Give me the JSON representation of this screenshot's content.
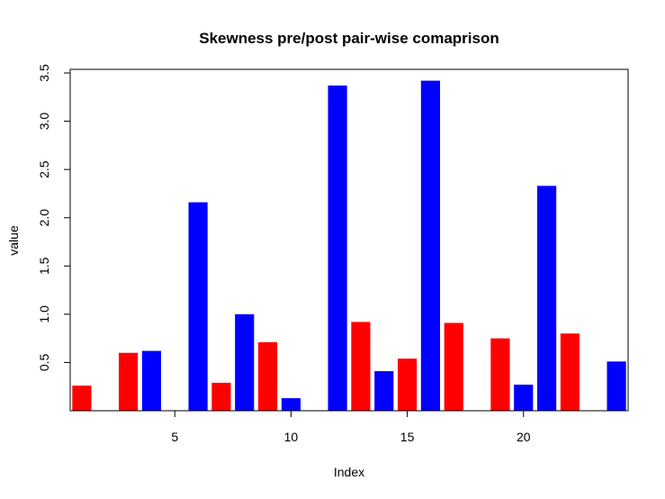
{
  "chart_data": {
    "type": "bar",
    "title": "Skewness pre/post pair-wise comaprison",
    "xlabel": "Index",
    "ylabel": "value",
    "x": [
      1,
      2,
      3,
      4,
      5,
      6,
      7,
      8,
      9,
      10,
      11,
      12,
      13,
      14,
      15,
      16,
      17,
      18,
      19,
      20,
      21,
      22,
      23,
      24
    ],
    "values": [
      0.26,
      0,
      0.6,
      0.62,
      0,
      2.16,
      0.29,
      1.0,
      0.71,
      0.13,
      0,
      3.37,
      0.92,
      0.41,
      0.54,
      3.42,
      0.91,
      0,
      0.75,
      0.27,
      2.33,
      0.8,
      0,
      0.51
    ],
    "colors": [
      "#ff0000",
      "#0000ff",
      "#ff0000",
      "#0000ff",
      "#ff0000",
      "#0000ff",
      "#ff0000",
      "#0000ff",
      "#ff0000",
      "#0000ff",
      "#ff0000",
      "#0000ff",
      "#ff0000",
      "#0000ff",
      "#ff0000",
      "#0000ff",
      "#ff0000",
      "#0000ff",
      "#ff0000",
      "#0000ff",
      "#0000ff",
      "#ff0000",
      "#ff0000",
      "#0000ff"
    ],
    "xticks": [
      5,
      10,
      15,
      20
    ],
    "yticks": [
      "0.5",
      "1.0",
      "1.5",
      "2.0",
      "2.5",
      "3.0",
      "3.5"
    ],
    "xlim": [
      0.5,
      24.5
    ],
    "ylim": [
      0.0,
      3.5
    ],
    "grid": false,
    "legend": "none"
  }
}
